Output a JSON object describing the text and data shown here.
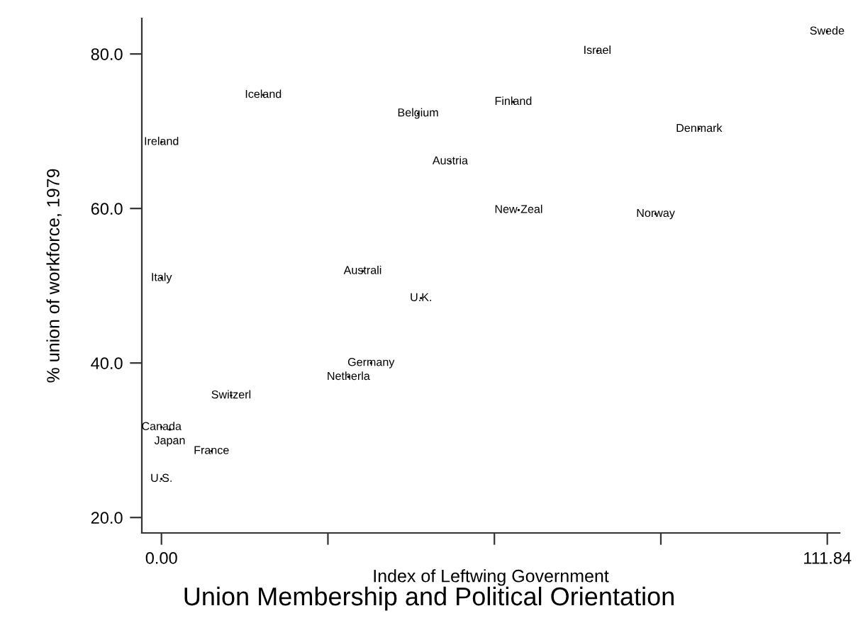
{
  "chart_data": {
    "type": "scatter",
    "title": "Union Membership and Political Orientation",
    "xlabel": "Index of Leftwing Government",
    "ylabel": "% union of workforce, 1979",
    "x": [
      111.8,
      73.2,
      17.1,
      43.1,
      59.1,
      90.3,
      0,
      48.5,
      60.0,
      83.0,
      0,
      33.8,
      43.6,
      35.2,
      31.4,
      11.7,
      0,
      1.4,
      8.4,
      0
    ],
    "values": [
      82.9,
      80.4,
      74.7,
      72.3,
      73.8,
      70.3,
      68.6,
      66.1,
      59.8,
      59.3,
      51.0,
      51.9,
      48.4,
      40.0,
      38.2,
      35.8,
      31.7,
      31.4,
      28.6,
      25.0
    ],
    "value_labels": [
      "Swede",
      "Israel",
      "Iceland",
      "Belgium",
      "Finland",
      "Denmark",
      "Ireland",
      "Austria",
      "New Zeal",
      "Norway",
      "Italy",
      "Australi",
      "U.K.",
      "Germany",
      "Netherla",
      "Switzerl",
      "Canada",
      "Japan",
      "France",
      "U.S."
    ],
    "color": "#000000",
    "marker": "circle",
    "grid": false,
    "legend": false,
    "xlim": [
      -3.3,
      113.9
    ],
    "ylim": [
      18,
      84.6
    ],
    "xticks": [
      {
        "value": 0,
        "label": "0.00"
      },
      {
        "value": 27.96,
        "label": null
      },
      {
        "value": 55.92,
        "label": null
      },
      {
        "value": 83.88,
        "label": null
      },
      {
        "value": 111.84,
        "label": "111.84"
      }
    ],
    "yticks": [
      {
        "value": 20,
        "label": "20.0"
      },
      {
        "value": 40,
        "label": "40.0"
      },
      {
        "value": 60,
        "label": "60.0"
      },
      {
        "value": 80,
        "label": "80.0"
      }
    ]
  }
}
